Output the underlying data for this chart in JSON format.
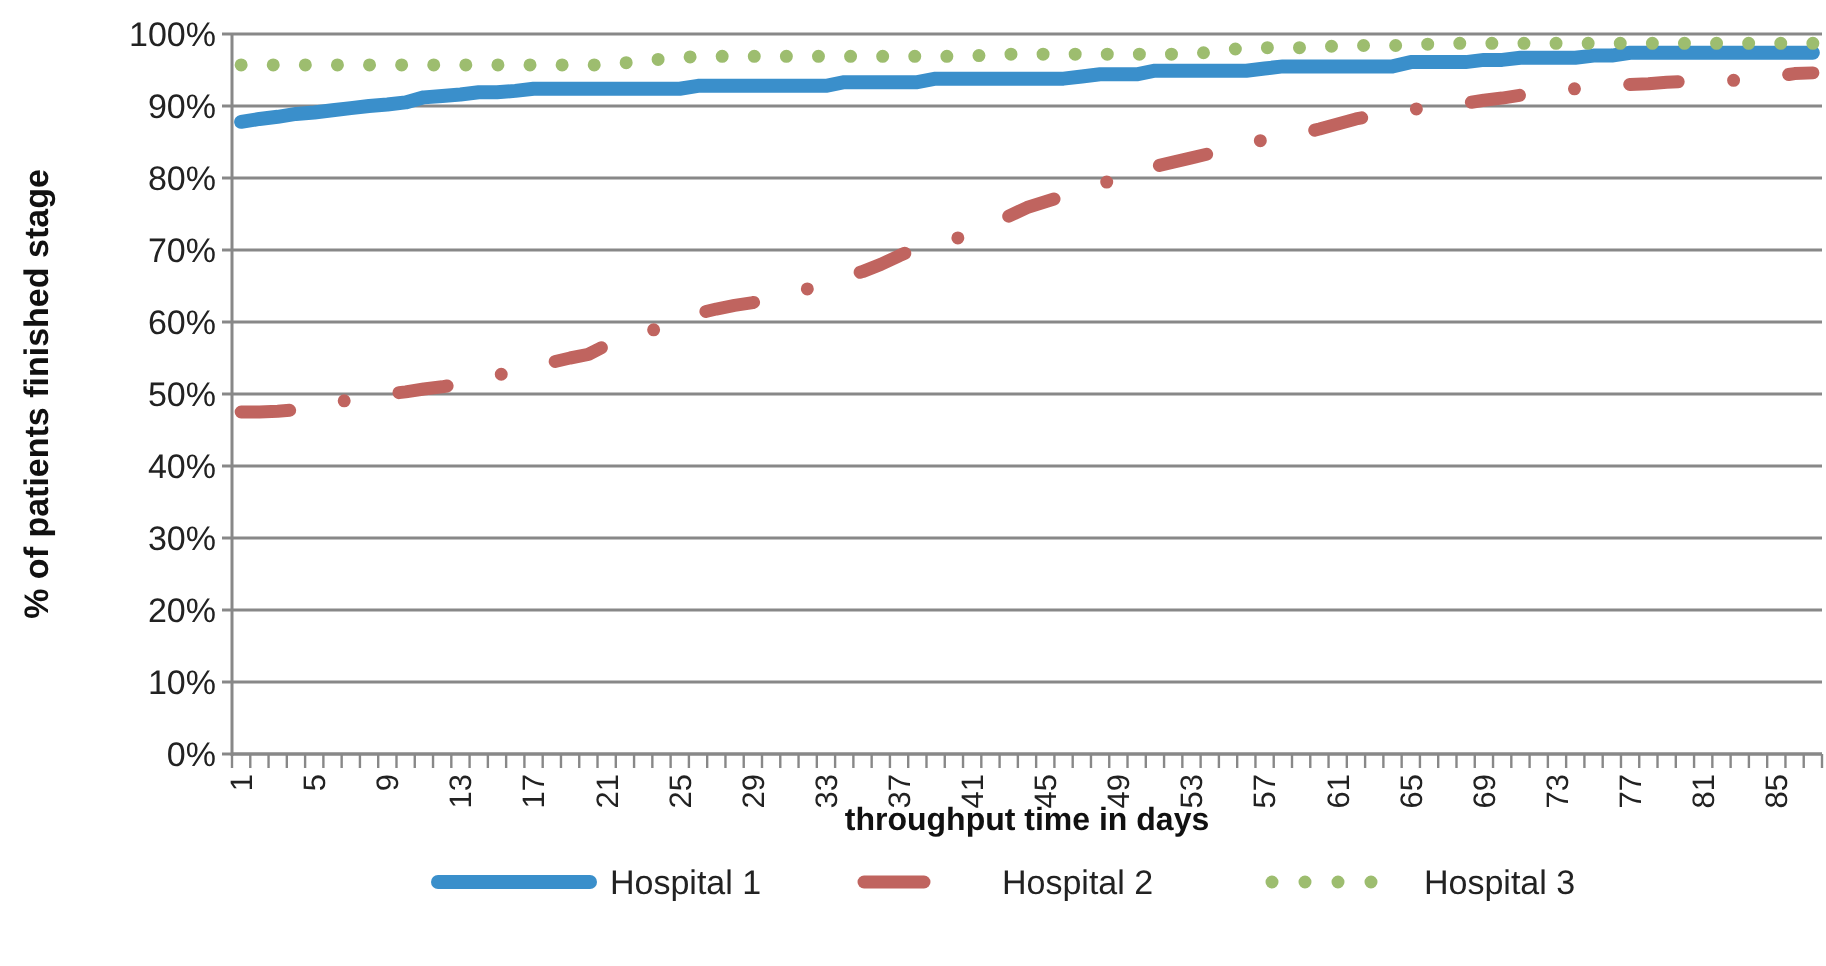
{
  "chart_data": {
    "type": "line",
    "xlabel": "throughput time in days",
    "ylabel": "% of patients finished stage",
    "categories": [
      "1",
      null,
      null,
      null,
      "5",
      null,
      null,
      null,
      "9",
      null,
      null,
      null,
      "13",
      null,
      null,
      null,
      "17",
      null,
      null,
      null,
      "21",
      null,
      null,
      null,
      "25",
      null,
      null,
      null,
      "29",
      null,
      null,
      null,
      "33",
      null,
      null,
      null,
      "37",
      null,
      null,
      null,
      "41",
      null,
      null,
      null,
      "45",
      null,
      null,
      null,
      "49",
      null,
      null,
      null,
      "53",
      null,
      null,
      null,
      "57",
      null,
      null,
      null,
      "61",
      null,
      null,
      null,
      "65",
      null,
      null,
      null,
      "69",
      null,
      null,
      null,
      "73",
      null,
      null,
      null,
      "77",
      null,
      null,
      null,
      "81",
      null,
      null,
      null,
      "85",
      null,
      null
    ],
    "ylim": [
      0,
      100
    ],
    "yticks": [
      {
        "value": 0,
        "label": "0%"
      },
      {
        "value": 10,
        "label": "10%"
      },
      {
        "value": 20,
        "label": "20%"
      },
      {
        "value": 30,
        "label": "30%"
      },
      {
        "value": 40,
        "label": "40%"
      },
      {
        "value": 50,
        "label": "50%"
      },
      {
        "value": 60,
        "label": "60%"
      },
      {
        "value": 70,
        "label": "70%"
      },
      {
        "value": 80,
        "label": "80%"
      },
      {
        "value": 90,
        "label": "90%"
      },
      {
        "value": 100,
        "label": "100%"
      }
    ],
    "grid": "y",
    "legend": "bottom",
    "series": [
      {
        "name": "Hospital 1",
        "color": "#3a8fcb",
        "line_style": "solid",
        "values": [
          87.8,
          88.2,
          88.5,
          88.9,
          89.1,
          89.4,
          89.7,
          90.0,
          90.2,
          90.5,
          91.2,
          91.4,
          91.6,
          91.9,
          91.9,
          92.1,
          92.4,
          92.4,
          92.4,
          92.4,
          92.4,
          92.4,
          92.4,
          92.4,
          92.4,
          92.8,
          92.8,
          92.8,
          92.8,
          92.8,
          92.8,
          92.8,
          92.8,
          93.3,
          93.3,
          93.3,
          93.3,
          93.3,
          93.8,
          93.8,
          93.8,
          93.8,
          93.8,
          93.8,
          93.8,
          93.8,
          94.1,
          94.4,
          94.4,
          94.4,
          94.9,
          94.9,
          94.9,
          94.9,
          94.9,
          94.9,
          95.2,
          95.5,
          95.5,
          95.5,
          95.5,
          95.5,
          95.5,
          95.5,
          96.1,
          96.1,
          96.1,
          96.1,
          96.4,
          96.4,
          96.7,
          96.7,
          96.7,
          96.7,
          97.0,
          97.0,
          97.4,
          97.4,
          97.4,
          97.4,
          97.4,
          97.4,
          97.4,
          97.4,
          97.4,
          97.4,
          97.4
        ]
      },
      {
        "name": "Hospital 2",
        "color": "#c0645f",
        "line_style": "dashed",
        "values": [
          47.5,
          47.5,
          47.6,
          47.8,
          48.3,
          48.8,
          49.2,
          49.6,
          50.0,
          50.3,
          50.7,
          51.0,
          51.4,
          52.0,
          52.6,
          53.2,
          53.8,
          54.4,
          55.0,
          55.5,
          56.8,
          57.8,
          58.4,
          59.3,
          60.2,
          61.2,
          61.8,
          62.3,
          62.7,
          63.3,
          64.0,
          64.6,
          65.4,
          66.3,
          67.0,
          68.0,
          69.2,
          70.3,
          70.8,
          71.5,
          72.3,
          73.5,
          74.7,
          75.9,
          76.7,
          77.5,
          78.2,
          79.0,
          80.2,
          81.0,
          81.6,
          82.2,
          82.8,
          83.4,
          84.0,
          84.8,
          85.3,
          85.7,
          86.2,
          86.8,
          87.5,
          88.2,
          88.7,
          89.1,
          89.5,
          89.8,
          90.1,
          90.4,
          90.8,
          91.1,
          91.5,
          91.8,
          92.1,
          92.4,
          92.6,
          92.8,
          93.0,
          93.1,
          93.3,
          93.4,
          93.4,
          93.5,
          93.6,
          93.8,
          94.1,
          94.5,
          94.6
        ]
      },
      {
        "name": "Hospital 3",
        "color": "#9dbd6f",
        "line_style": "dotted",
        "values": [
          95.7,
          95.7,
          95.7,
          95.7,
          95.7,
          95.7,
          95.7,
          95.7,
          95.7,
          95.7,
          95.7,
          95.7,
          95.7,
          95.7,
          95.7,
          95.7,
          95.7,
          95.7,
          95.7,
          95.7,
          95.7,
          96.0,
          96.3,
          96.5,
          96.7,
          96.9,
          96.9,
          96.9,
          96.9,
          96.9,
          96.9,
          96.9,
          96.9,
          96.9,
          96.9,
          96.9,
          96.9,
          96.9,
          96.9,
          96.9,
          97.0,
          97.0,
          97.2,
          97.2,
          97.2,
          97.2,
          97.2,
          97.2,
          97.2,
          97.2,
          97.2,
          97.2,
          97.2,
          97.5,
          97.8,
          98.1,
          98.1,
          98.1,
          98.1,
          98.1,
          98.4,
          98.4,
          98.4,
          98.4,
          98.4,
          98.6,
          98.7,
          98.7,
          98.7,
          98.7,
          98.7,
          98.7,
          98.7,
          98.7,
          98.7,
          98.7,
          98.7,
          98.7,
          98.7,
          98.7,
          98.7,
          98.7,
          98.7,
          98.7,
          98.7,
          98.7,
          98.7
        ]
      }
    ]
  }
}
